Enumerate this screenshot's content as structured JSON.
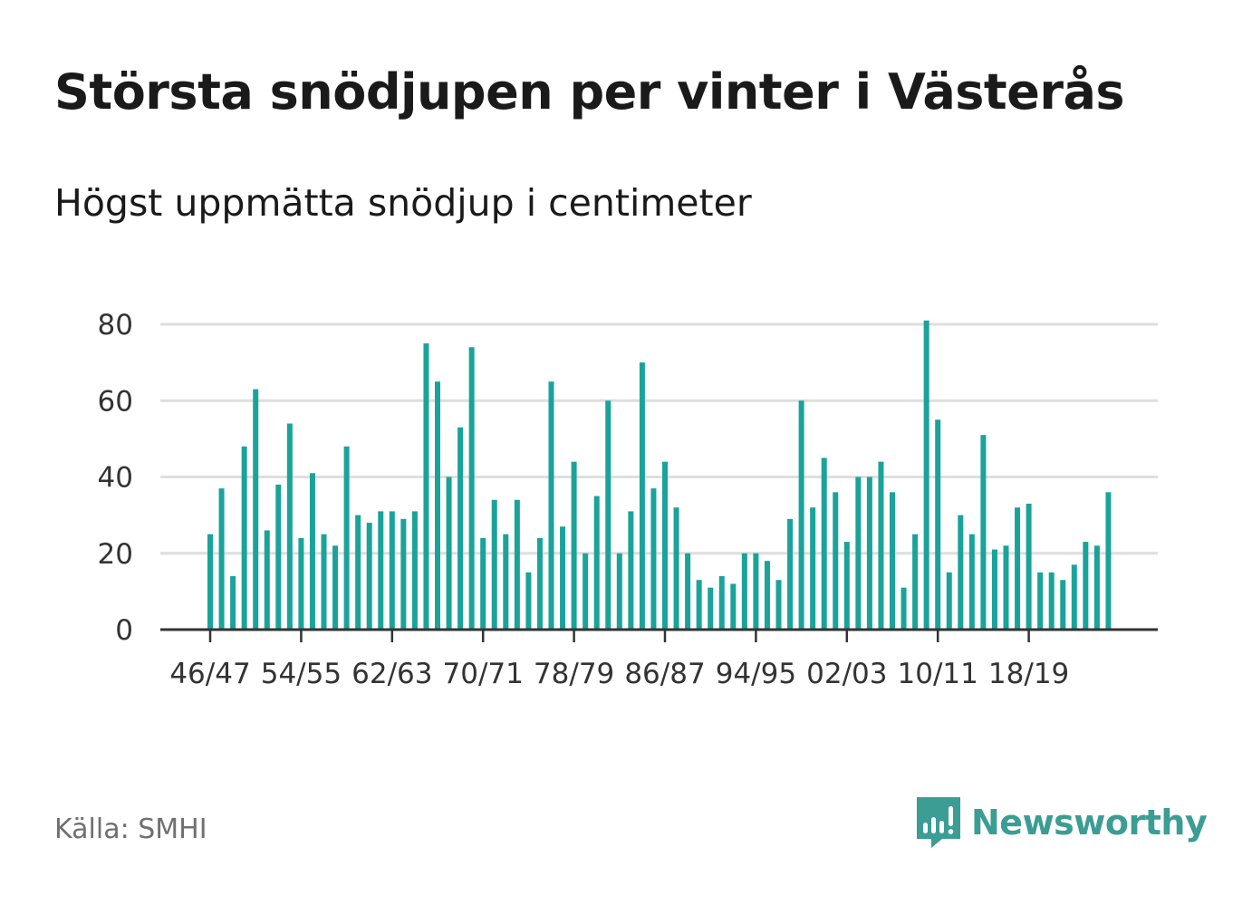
{
  "title": "Största snödjupen per vinter i Västerås",
  "subtitle": "Högst uppmätta snödjup i centimeter",
  "source": "Källa: SMHI",
  "brand": {
    "name": "Newsworthy",
    "color": "#3b9d94",
    "icon": "newsworthy-logo-icon"
  },
  "colors": {
    "bar": "#1aa39a",
    "grid": "#dedede",
    "axis": "#333333"
  },
  "chart_data": {
    "type": "bar",
    "title": "Största snödjupen per vinter i Västerås",
    "subtitle": "Högst uppmätta snödjup i centimeter",
    "xlabel": "",
    "ylabel": "",
    "ylim": [
      0,
      80
    ],
    "yticks": [
      0,
      20,
      40,
      60,
      80
    ],
    "grid": true,
    "legend": "none",
    "xtick_labels": [
      "46/47",
      "54/55",
      "62/63",
      "70/71",
      "78/79",
      "86/87",
      "94/95",
      "02/03",
      "10/11",
      "18/19"
    ],
    "xtick_every": 8,
    "values": [
      25,
      37,
      14,
      48,
      63,
      26,
      38,
      54,
      24,
      41,
      25,
      22,
      48,
      30,
      28,
      31,
      31,
      29,
      31,
      75,
      65,
      40,
      53,
      74,
      24,
      34,
      25,
      34,
      15,
      24,
      65,
      27,
      44,
      20,
      35,
      60,
      20,
      31,
      70,
      37,
      44,
      32,
      20,
      13,
      11,
      14,
      12,
      20,
      20,
      18,
      13,
      29,
      60,
      32,
      45,
      36,
      23,
      40,
      40,
      44,
      36,
      11,
      25,
      81,
      55,
      15,
      30,
      25,
      51,
      21,
      22,
      32,
      33,
      15,
      15,
      13,
      17,
      23,
      22,
      36
    ]
  }
}
